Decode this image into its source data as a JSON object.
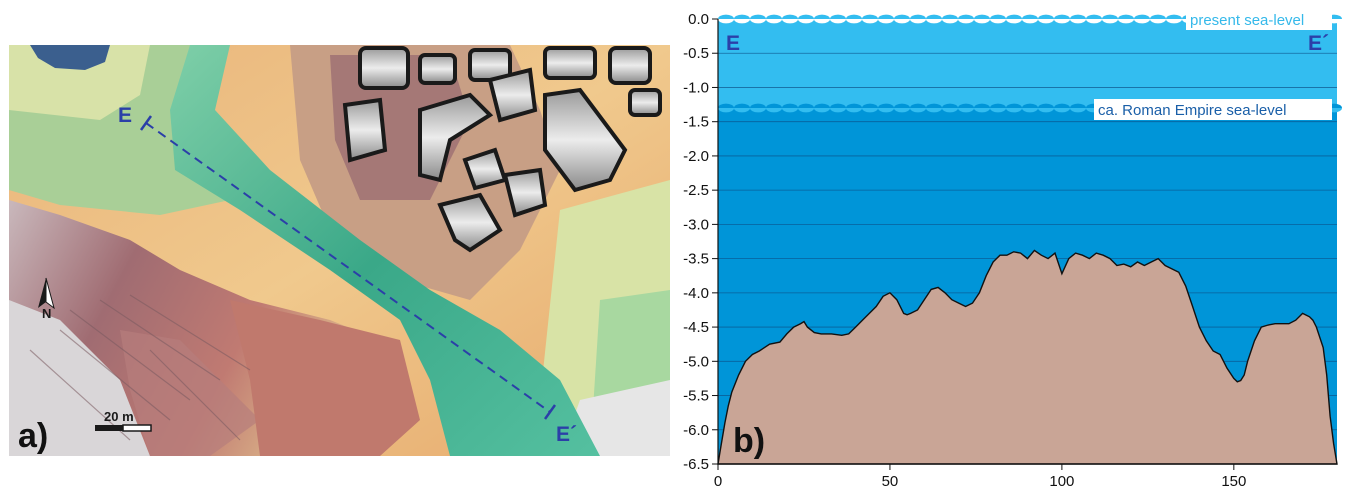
{
  "panel_a": {
    "label": "a)",
    "section_start": "E",
    "section_end": "E´",
    "scale_text": "20 m",
    "north_text": "N",
    "line_color": "#2b3fa8"
  },
  "panel_b": {
    "label": "b)",
    "section_start": "E",
    "section_end": "E´",
    "present_sea_label": "present sea-level",
    "roman_sea_label": "ca. Roman Empire sea-level"
  },
  "colors": {
    "shallow_water": "#33bdf0",
    "deep_water": "#0095d8",
    "terrain_fill": "#c9a596",
    "label_blue": "#2b3fa8",
    "sea_label_text": "#35b9ea"
  },
  "chart_data": {
    "type": "area",
    "title": "",
    "xlabel": "",
    "ylabel": "",
    "xlim": [
      0,
      180
    ],
    "ylim": [
      -6.5,
      0.0
    ],
    "x_ticks": [
      0,
      50,
      100,
      150
    ],
    "y_ticks": [
      "0.0",
      "-0.5",
      "-1.0",
      "-1.5",
      "-2.0",
      "-2.5",
      "-3.0",
      "-3.5",
      "-4.0",
      "-4.5",
      "-5.0",
      "-5.5",
      "-6.0",
      "-6.5"
    ],
    "grid": true,
    "reference_levels": [
      {
        "name": "present sea-level",
        "y": 0.0
      },
      {
        "name": "ca. Roman Empire sea-level",
        "y": -1.3
      }
    ],
    "series": [
      {
        "x": [
          0,
          1,
          2,
          3,
          4,
          6,
          8,
          10,
          12,
          15,
          18,
          20,
          22,
          24,
          25,
          26,
          28,
          30,
          33,
          36,
          38,
          40,
          42,
          44,
          46,
          48,
          50,
          52,
          54,
          55,
          56,
          58,
          60,
          62,
          64,
          66,
          68,
          70,
          72,
          74,
          76,
          78,
          80,
          81,
          82,
          84,
          86,
          88,
          90,
          92,
          94,
          96,
          98,
          100,
          102,
          104,
          106,
          108,
          110,
          112,
          114,
          116,
          118,
          120,
          122,
          124,
          126,
          128,
          130,
          132,
          134,
          136,
          138,
          140,
          142,
          144,
          146,
          148,
          150,
          151,
          152,
          153,
          154,
          156,
          158,
          160,
          162,
          164,
          166,
          168,
          170,
          172,
          173,
          174,
          176,
          177,
          178,
          179,
          180
        ],
        "y": [
          -6.5,
          -6.2,
          -5.9,
          -5.65,
          -5.45,
          -5.2,
          -5.0,
          -4.9,
          -4.85,
          -4.75,
          -4.72,
          -4.6,
          -4.5,
          -4.45,
          -4.42,
          -4.5,
          -4.58,
          -4.6,
          -4.6,
          -4.62,
          -4.6,
          -4.5,
          -4.4,
          -4.3,
          -4.2,
          -4.05,
          -4.0,
          -4.1,
          -4.3,
          -4.32,
          -4.3,
          -4.25,
          -4.1,
          -3.95,
          -3.92,
          -4.0,
          -4.1,
          -4.15,
          -4.2,
          -4.15,
          -4.0,
          -3.75,
          -3.55,
          -3.5,
          -3.45,
          -3.45,
          -3.4,
          -3.42,
          -3.5,
          -3.38,
          -3.45,
          -3.5,
          -3.42,
          -3.72,
          -3.5,
          -3.42,
          -3.45,
          -3.5,
          -3.42,
          -3.45,
          -3.5,
          -3.6,
          -3.58,
          -3.62,
          -3.55,
          -3.6,
          -3.55,
          -3.5,
          -3.6,
          -3.65,
          -3.7,
          -3.9,
          -4.2,
          -4.5,
          -4.7,
          -4.85,
          -4.9,
          -5.1,
          -5.25,
          -5.3,
          -5.28,
          -5.2,
          -5.0,
          -4.7,
          -4.5,
          -4.47,
          -4.45,
          -4.45,
          -4.45,
          -4.4,
          -4.3,
          -4.35,
          -4.4,
          -4.5,
          -4.8,
          -5.2,
          -5.8,
          -6.2,
          -6.5
        ]
      }
    ]
  }
}
